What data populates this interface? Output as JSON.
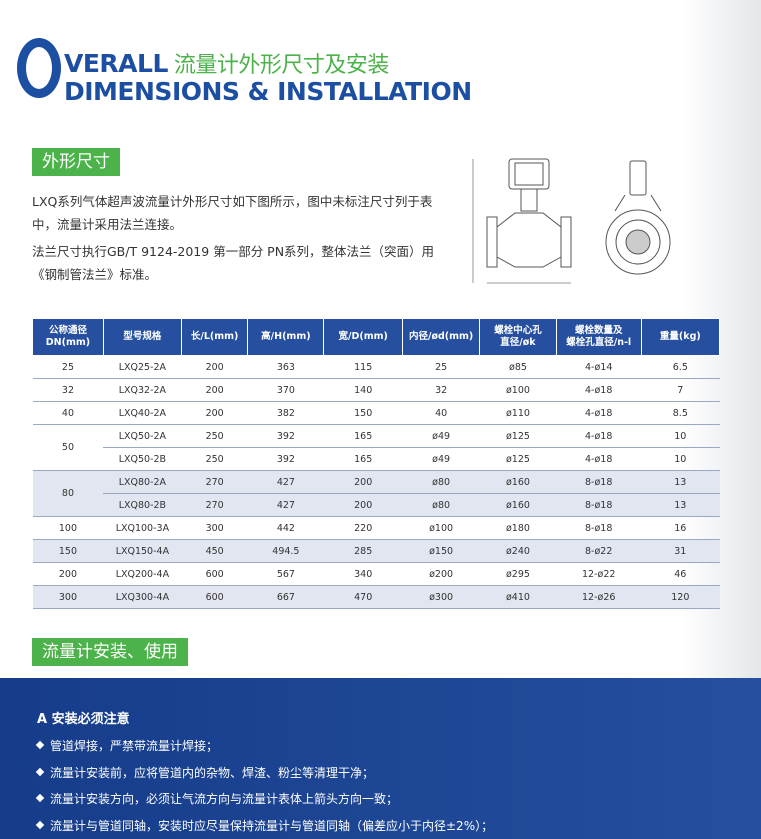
{
  "header": {
    "initial": "O",
    "title_rest": "VERALL",
    "title_cn": "流量计外形尺寸及安装",
    "subtitle": "DIMENSIONS & INSTALLATION"
  },
  "section1": {
    "heading": "外形尺寸",
    "paragraphs": [
      "LXQ系列气体超声波流量计外形尺寸如下图所示，图中未标注尺寸列于表中，流量计采用法兰连接。",
      "法兰尺寸执行GB/T 9124-2019 第一部分 PN系列，整体法兰（突面）用《钢制管法兰》标准。"
    ]
  },
  "table": {
    "columns": [
      [
        "公称通径",
        "DN(mm)"
      ],
      [
        "型号规格"
      ],
      [
        "长/L(mm)"
      ],
      [
        "高/H(mm)"
      ],
      [
        "宽/D(mm)"
      ],
      [
        "内径/ød(mm)"
      ],
      [
        "螺栓中心孔",
        "直径/øk"
      ],
      [
        "螺栓数量及",
        "螺栓孔直径/n-l"
      ],
      [
        "重量(kg)"
      ]
    ],
    "groups": [
      {
        "dn": "25",
        "rows": [
          [
            "LXQ25-2A",
            "200",
            "363",
            "115",
            "25",
            "ø85",
            "4-ø14",
            "6.5"
          ]
        ]
      },
      {
        "dn": "32",
        "rows": [
          [
            "LXQ32-2A",
            "200",
            "370",
            "140",
            "32",
            "ø100",
            "4-ø18",
            "7"
          ]
        ]
      },
      {
        "dn": "40",
        "rows": [
          [
            "LXQ40-2A",
            "200",
            "382",
            "150",
            "40",
            "ø110",
            "4-ø18",
            "8.5"
          ]
        ]
      },
      {
        "dn": "50",
        "rows": [
          [
            "LXQ50-2A",
            "250",
            "392",
            "165",
            "ø49",
            "ø125",
            "4-ø18",
            "10"
          ],
          [
            "LXQ50-2B",
            "250",
            "392",
            "165",
            "ø49",
            "ø125",
            "4-ø18",
            "10"
          ]
        ]
      },
      {
        "dn": "80",
        "rows": [
          [
            "LXQ80-2A",
            "270",
            "427",
            "200",
            "ø80",
            "ø160",
            "8-ø18",
            "13"
          ],
          [
            "LXQ80-2B",
            "270",
            "427",
            "200",
            "ø80",
            "ø160",
            "8-ø18",
            "13"
          ]
        ]
      },
      {
        "dn": "100",
        "rows": [
          [
            "LXQ100-3A",
            "300",
            "442",
            "220",
            "ø100",
            "ø180",
            "8-ø18",
            "16"
          ]
        ]
      },
      {
        "dn": "150",
        "rows": [
          [
            "LXQ150-4A",
            "450",
            "494.5",
            "285",
            "ø150",
            "ø240",
            "8-ø22",
            "31"
          ]
        ]
      },
      {
        "dn": "200",
        "rows": [
          [
            "LXQ200-4A",
            "600",
            "567",
            "340",
            "ø200",
            "ø295",
            "12-ø22",
            "46"
          ]
        ]
      },
      {
        "dn": "300",
        "rows": [
          [
            "LXQ300-4A",
            "600",
            "667",
            "470",
            "ø300",
            "ø410",
            "12-ø26",
            "120"
          ]
        ]
      }
    ]
  },
  "section2": {
    "heading": "流量计安装、使用",
    "notice_title": "A 安装必须注意",
    "bullets": [
      "管道焊接，严禁带流量计焊接；",
      "流量计安装前，应将管道内的杂物、焊渣、粉尘等清理干净；",
      "流量计安装方向，必须让气流方向与流量计表体上箭头方向一致；",
      "流量计与管道同轴，安装时应尽量保持流量计与管道同轴（偏差应小于内径±2%）；"
    ]
  }
}
